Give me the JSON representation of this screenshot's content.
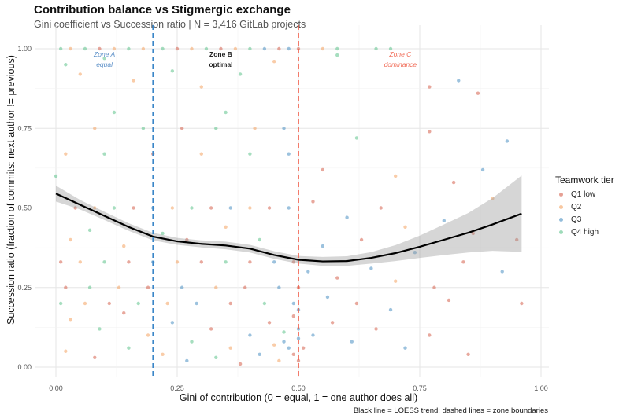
{
  "chart_data": {
    "type": "scatter",
    "title": "Contribution balance vs Stigmergic exchange",
    "subtitle": "Gini coefficient vs Succession ratio | N = 3,416 GitLab projects",
    "xlabel": "Gini of contribution (0 = equal, 1 = one author does all)",
    "ylabel": "Succession ratio (fraction of commits: next author != previous)",
    "caption": "Black line = LOESS trend; dashed lines = zone boundaries",
    "xlim": [
      -0.04,
      1.04
    ],
    "ylim": [
      -0.02,
      1.04
    ],
    "xticks": [
      "0.00",
      "0.25",
      "0.50",
      "0.75",
      "1.00"
    ],
    "yticks": [
      "0.00",
      "0.25",
      "0.50",
      "0.75",
      "1.00"
    ],
    "grid": true,
    "legend": {
      "title": "Teamwork tier",
      "position": "right",
      "entries": [
        {
          "name": "Q1 low",
          "color": "#d6604d"
        },
        {
          "name": "Q2",
          "color": "#f4a261"
        },
        {
          "name": "Q3",
          "color": "#4a90c2"
        },
        {
          "name": "Q4 high",
          "color": "#5cc38a"
        }
      ]
    },
    "zone_lines": [
      {
        "x": 0.2,
        "color": "#3a86c8"
      },
      {
        "x": 0.5,
        "color": "#f05a46"
      }
    ],
    "zone_labels": [
      {
        "line1": "Zone A",
        "line2": "equal",
        "x": 0.1,
        "color": "#5b8fc7"
      },
      {
        "line1": "Zone B",
        "line2": "optimal",
        "x": 0.34,
        "color": "#222"
      },
      {
        "line1": "Zone C",
        "line2": "dominance",
        "x": 0.71,
        "color": "#f06a55"
      }
    ],
    "loess": {
      "x": [
        0,
        0.05,
        0.1,
        0.15,
        0.2,
        0.25,
        0.3,
        0.35,
        0.4,
        0.45,
        0.5,
        0.55,
        0.6,
        0.65,
        0.7,
        0.75,
        0.8,
        0.85,
        0.9,
        0.96
      ],
      "y": [
        0.545,
        0.51,
        0.475,
        0.44,
        0.41,
        0.395,
        0.387,
        0.382,
        0.372,
        0.352,
        0.337,
        0.332,
        0.333,
        0.343,
        0.358,
        0.378,
        0.4,
        0.422,
        0.448,
        0.482
      ],
      "lower": [
        0.52,
        0.495,
        0.462,
        0.428,
        0.398,
        0.384,
        0.376,
        0.37,
        0.36,
        0.34,
        0.325,
        0.318,
        0.318,
        0.325,
        0.333,
        0.343,
        0.352,
        0.36,
        0.365,
        0.362
      ],
      "upper": [
        0.57,
        0.525,
        0.488,
        0.452,
        0.422,
        0.406,
        0.398,
        0.394,
        0.384,
        0.364,
        0.349,
        0.346,
        0.348,
        0.361,
        0.383,
        0.413,
        0.448,
        0.484,
        0.531,
        0.602
      ]
    },
    "points": [
      [
        0.01,
        1,
        4
      ],
      [
        0.03,
        1,
        2
      ],
      [
        0.06,
        1,
        4
      ],
      [
        0.09,
        1,
        1
      ],
      [
        0.12,
        1,
        2
      ],
      [
        0.15,
        1,
        4
      ],
      [
        0.18,
        1,
        2
      ],
      [
        0.22,
        1,
        4
      ],
      [
        0.25,
        1,
        1
      ],
      [
        0.28,
        1,
        2
      ],
      [
        0.31,
        1,
        4
      ],
      [
        0.34,
        1,
        1
      ],
      [
        0.37,
        1,
        2
      ],
      [
        0.4,
        1,
        4
      ],
      [
        0.43,
        1,
        3
      ],
      [
        0.46,
        1,
        1
      ],
      [
        0.48,
        1,
        3
      ],
      [
        0.5,
        1,
        1
      ],
      [
        0.55,
        1,
        2
      ],
      [
        0.58,
        1,
        4
      ],
      [
        0.66,
        1,
        4
      ],
      [
        0.69,
        1,
        4
      ],
      [
        0.02,
        0.95,
        4
      ],
      [
        0.05,
        0.92,
        2
      ],
      [
        0.1,
        0.97,
        4
      ],
      [
        0.16,
        0.9,
        2
      ],
      [
        0.24,
        0.93,
        4
      ],
      [
        0.3,
        0.88,
        2
      ],
      [
        0.38,
        0.92,
        4
      ],
      [
        0.45,
        0.96,
        2
      ],
      [
        0.58,
        0.98,
        4
      ],
      [
        0.77,
        0.88,
        1
      ],
      [
        0.83,
        0.9,
        3
      ],
      [
        0.87,
        0.86,
        1
      ],
      [
        0.08,
        0.75,
        2
      ],
      [
        0.18,
        0.75,
        4
      ],
      [
        0.26,
        0.75,
        1
      ],
      [
        0.33,
        0.75,
        4
      ],
      [
        0.41,
        0.75,
        2
      ],
      [
        0.47,
        0.75,
        3
      ],
      [
        0.12,
        0.8,
        4
      ],
      [
        0.35,
        0.8,
        4
      ],
      [
        0.62,
        0.72,
        4
      ],
      [
        0.77,
        0.74,
        1
      ],
      [
        0.93,
        0.71,
        3
      ],
      [
        0.02,
        0.67,
        2
      ],
      [
        0.1,
        0.67,
        4
      ],
      [
        0.2,
        0.67,
        1
      ],
      [
        0.3,
        0.67,
        2
      ],
      [
        0.4,
        0.67,
        4
      ],
      [
        0.48,
        0.67,
        3
      ],
      [
        0.55,
        0.62,
        1
      ],
      [
        0.7,
        0.6,
        2
      ],
      [
        0.82,
        0.58,
        1
      ],
      [
        0.88,
        0.62,
        3
      ],
      [
        0,
        0.6,
        4
      ],
      [
        0.04,
        0.5,
        1
      ],
      [
        0.08,
        0.5,
        2
      ],
      [
        0.12,
        0.5,
        4
      ],
      [
        0.16,
        0.5,
        1
      ],
      [
        0.2,
        0.5,
        3
      ],
      [
        0.24,
        0.5,
        2
      ],
      [
        0.28,
        0.5,
        4
      ],
      [
        0.32,
        0.5,
        1
      ],
      [
        0.36,
        0.5,
        3
      ],
      [
        0.4,
        0.5,
        2
      ],
      [
        0.44,
        0.5,
        1
      ],
      [
        0.48,
        0.5,
        3
      ],
      [
        0.53,
        0.52,
        1
      ],
      [
        0.6,
        0.47,
        3
      ],
      [
        0.67,
        0.5,
        1
      ],
      [
        0.72,
        0.44,
        2
      ],
      [
        0.8,
        0.46,
        3
      ],
      [
        0.86,
        0.42,
        1
      ],
      [
        0.9,
        0.53,
        2
      ],
      [
        0.95,
        0.4,
        1
      ],
      [
        0.03,
        0.4,
        2
      ],
      [
        0.07,
        0.43,
        4
      ],
      [
        0.14,
        0.38,
        2
      ],
      [
        0.22,
        0.42,
        4
      ],
      [
        0.27,
        0.4,
        1
      ],
      [
        0.35,
        0.44,
        2
      ],
      [
        0.42,
        0.4,
        4
      ],
      [
        0.55,
        0.38,
        3
      ],
      [
        0.63,
        0.4,
        1
      ],
      [
        0.74,
        0.36,
        3
      ],
      [
        0.84,
        0.33,
        1
      ],
      [
        0.92,
        0.3,
        3
      ],
      [
        0.01,
        0.33,
        1
      ],
      [
        0.05,
        0.33,
        2
      ],
      [
        0.1,
        0.33,
        4
      ],
      [
        0.15,
        0.33,
        1
      ],
      [
        0.2,
        0.33,
        3
      ],
      [
        0.25,
        0.33,
        2
      ],
      [
        0.3,
        0.33,
        1
      ],
      [
        0.35,
        0.33,
        4
      ],
      [
        0.4,
        0.33,
        1
      ],
      [
        0.45,
        0.33,
        3
      ],
      [
        0.49,
        0.33,
        1
      ],
      [
        0.52,
        0.3,
        3
      ],
      [
        0.58,
        0.28,
        1
      ],
      [
        0.65,
        0.31,
        3
      ],
      [
        0.7,
        0.27,
        2
      ],
      [
        0.78,
        0.25,
        1
      ],
      [
        0.02,
        0.25,
        1
      ],
      [
        0.07,
        0.25,
        4
      ],
      [
        0.13,
        0.25,
        2
      ],
      [
        0.19,
        0.25,
        1
      ],
      [
        0.26,
        0.25,
        3
      ],
      [
        0.33,
        0.25,
        2
      ],
      [
        0.39,
        0.25,
        1
      ],
      [
        0.46,
        0.25,
        3
      ],
      [
        0.5,
        0.25,
        1
      ],
      [
        0.56,
        0.22,
        3
      ],
      [
        0.62,
        0.2,
        1
      ],
      [
        0.69,
        0.18,
        3
      ],
      [
        0.81,
        0.21,
        1
      ],
      [
        0.96,
        0.2,
        1
      ],
      [
        0.01,
        0.2,
        4
      ],
      [
        0.06,
        0.2,
        2
      ],
      [
        0.11,
        0.2,
        1
      ],
      [
        0.17,
        0.2,
        4
      ],
      [
        0.23,
        0.2,
        2
      ],
      [
        0.29,
        0.2,
        3
      ],
      [
        0.36,
        0.2,
        1
      ],
      [
        0.43,
        0.2,
        4
      ],
      [
        0.49,
        0.2,
        3
      ],
      [
        0.03,
        0.15,
        2
      ],
      [
        0.09,
        0.12,
        4
      ],
      [
        0.14,
        0.17,
        1
      ],
      [
        0.19,
        0.1,
        2
      ],
      [
        0.24,
        0.14,
        3
      ],
      [
        0.28,
        0.08,
        4
      ],
      [
        0.32,
        0.12,
        1
      ],
      [
        0.36,
        0.06,
        2
      ],
      [
        0.4,
        0.1,
        3
      ],
      [
        0.44,
        0.14,
        1
      ],
      [
        0.47,
        0.08,
        3
      ],
      [
        0.49,
        0.04,
        1
      ],
      [
        0.5,
        0.12,
        3
      ],
      [
        0.51,
        0.06,
        1
      ],
      [
        0.53,
        0.1,
        3
      ],
      [
        0.57,
        0.14,
        1
      ],
      [
        0.61,
        0.08,
        3
      ],
      [
        0.66,
        0.12,
        1
      ],
      [
        0.72,
        0.06,
        3
      ],
      [
        0.77,
        0.1,
        1
      ],
      [
        0.85,
        0.04,
        1
      ],
      [
        0.02,
        0.05,
        2
      ],
      [
        0.08,
        0.03,
        1
      ],
      [
        0.15,
        0.06,
        4
      ],
      [
        0.22,
        0.04,
        2
      ],
      [
        0.27,
        0.02,
        3
      ],
      [
        0.33,
        0.03,
        4
      ],
      [
        0.38,
        0.01,
        1
      ],
      [
        0.42,
        0.04,
        3
      ],
      [
        0.46,
        0.02,
        2
      ],
      [
        0.48,
        0.06,
        3
      ],
      [
        0.5,
        0.02,
        1
      ],
      [
        0.5,
        0.09,
        3
      ],
      [
        0.49,
        0.16,
        1
      ],
      [
        0.5,
        0.18,
        3
      ],
      [
        0.47,
        0.11,
        4
      ],
      [
        0.45,
        0.07,
        2
      ]
    ]
  }
}
